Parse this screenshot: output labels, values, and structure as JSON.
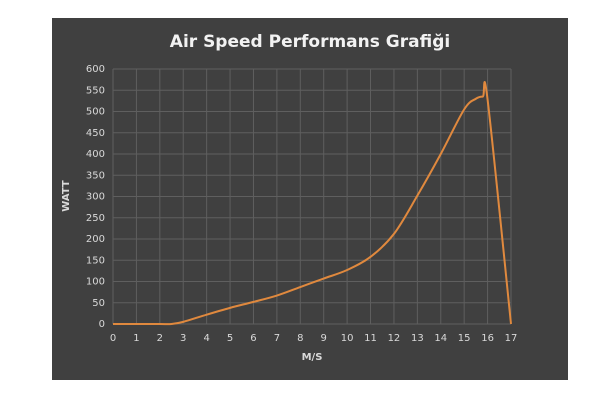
{
  "chart_data": {
    "type": "line",
    "title": "Air Speed Performans Grafiği",
    "x_label": "M/S",
    "y_label": "WATT",
    "x": [
      0,
      1,
      2,
      2.5,
      3,
      4,
      5,
      6,
      7,
      8,
      9,
      10,
      11,
      12,
      13,
      14,
      15,
      15.5,
      15.8,
      16,
      17
    ],
    "series": [
      {
        "name": "WATT",
        "color": "#e0893e",
        "values": [
          0,
          0,
          0,
          0,
          5,
          22,
          38,
          52,
          67,
          87,
          107,
          127,
          158,
          212,
          302,
          400,
          505,
          530,
          535,
          528,
          0
        ]
      }
    ],
    "xlim": [
      0,
      17
    ],
    "xticks": [
      0,
      1,
      2,
      3,
      4,
      5,
      6,
      7,
      8,
      9,
      10,
      11,
      12,
      13,
      14,
      15,
      16,
      17
    ],
    "ylim": [
      0,
      600
    ],
    "yticks": [
      0,
      50,
      100,
      150,
      200,
      250,
      300,
      350,
      400,
      450,
      500,
      550,
      600
    ],
    "grid": true
  }
}
